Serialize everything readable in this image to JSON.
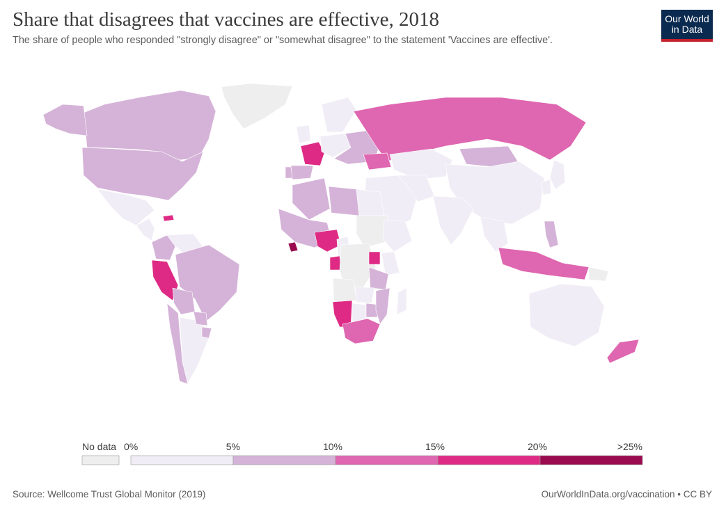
{
  "header": {
    "title": "Share that disagrees that vaccines are effective, 2018",
    "subtitle": "The share of people who responded \"strongly disagree\" or \"somewhat disagree\" to the statement 'Vaccines are effective'."
  },
  "logo": {
    "line1": "Our World",
    "line2": "in Data",
    "bg_color": "#0b2a4f",
    "accent_color": "#c5202e"
  },
  "legend": {
    "no_data_label": "No data",
    "no_data_color": "#eeeeee",
    "bins": [
      {
        "from": "0%",
        "to": "5%",
        "color": "#f1edf6"
      },
      {
        "from": "5%",
        "to": "10%",
        "color": "#d5b3d8"
      },
      {
        "from": "10%",
        "to": "15%",
        "color": "#df66b0"
      },
      {
        "from": "15%",
        "to": "20%",
        "color": "#de2a84"
      },
      {
        "from": "20%",
        "to": ">25%",
        "color": "#9a0a4e"
      }
    ],
    "tick_labels": [
      "0%",
      "5%",
      "10%",
      "15%",
      "20%",
      ">25%"
    ]
  },
  "map_data": {
    "type": "choropleth",
    "variable": "share disagreeing that vaccines are effective",
    "year": 2018,
    "regions": [
      {
        "name": "Greenland",
        "bin": "No data"
      },
      {
        "name": "Canada",
        "bin": "5-10%"
      },
      {
        "name": "Alaska",
        "bin": "5-10%"
      },
      {
        "name": "United States",
        "bin": "5-10%"
      },
      {
        "name": "Mexico",
        "bin": "0-5%"
      },
      {
        "name": "Central America",
        "bin": "0-5%"
      },
      {
        "name": "Haiti",
        "bin": "15-20%"
      },
      {
        "name": "Colombia",
        "bin": "5-10%"
      },
      {
        "name": "Venezuela",
        "bin": "0-5%"
      },
      {
        "name": "Brazil",
        "bin": "5-10%"
      },
      {
        "name": "Peru",
        "bin": "15-20%"
      },
      {
        "name": "Bolivia",
        "bin": "5-10%"
      },
      {
        "name": "Argentina",
        "bin": "0-5%"
      },
      {
        "name": "Chile",
        "bin": "5-10%"
      },
      {
        "name": "Paraguay",
        "bin": "5-10%"
      },
      {
        "name": "Uruguay",
        "bin": "5-10%"
      },
      {
        "name": "France",
        "bin": "15-20%"
      },
      {
        "name": "Spain",
        "bin": "5-10%"
      },
      {
        "name": "Portugal",
        "bin": "5-10%"
      },
      {
        "name": "United Kingdom",
        "bin": "0-5%"
      },
      {
        "name": "Scandinavia",
        "bin": "0-5%"
      },
      {
        "name": "Central Europe",
        "bin": "0-5%"
      },
      {
        "name": "Eastern Europe",
        "bin": "5-10%"
      },
      {
        "name": "Russia",
        "bin": "10-15%"
      },
      {
        "name": "Ukraine",
        "bin": "10-15%"
      },
      {
        "name": "Kazakhstan",
        "bin": "0-5%"
      },
      {
        "name": "Mongolia",
        "bin": "5-10%"
      },
      {
        "name": "China",
        "bin": "0-5%"
      },
      {
        "name": "Japan",
        "bin": "0-5%"
      },
      {
        "name": "Korea",
        "bin": "0-5%"
      },
      {
        "name": "Middle East",
        "bin": "0-5%"
      },
      {
        "name": "Iran",
        "bin": "0-5%"
      },
      {
        "name": "India",
        "bin": "0-5%"
      },
      {
        "name": "Southeast Asia",
        "bin": "0-5%"
      },
      {
        "name": "Philippines",
        "bin": "5-10%"
      },
      {
        "name": "Indonesia",
        "bin": "10-15%"
      },
      {
        "name": "Papua New Guinea",
        "bin": "No data"
      },
      {
        "name": "Australia",
        "bin": "0-5%"
      },
      {
        "name": "New Zealand",
        "bin": "10-15%"
      },
      {
        "name": "Algeria",
        "bin": "5-10%"
      },
      {
        "name": "Libya",
        "bin": "5-10%"
      },
      {
        "name": "Egypt",
        "bin": "0-5%"
      },
      {
        "name": "Sudan",
        "bin": "No data"
      },
      {
        "name": "West Africa",
        "bin": "5-10%"
      },
      {
        "name": "Liberia",
        "bin": ">25%"
      },
      {
        "name": "Nigeria",
        "bin": "15-20%"
      },
      {
        "name": "Cameroon",
        "bin": "0-5%"
      },
      {
        "name": "Gabon",
        "bin": "15-20%"
      },
      {
        "name": "Central Africa",
        "bin": "No data"
      },
      {
        "name": "Ethiopia",
        "bin": "0-5%"
      },
      {
        "name": "Kenya",
        "bin": "0-5%"
      },
      {
        "name": "Uganda",
        "bin": "15-20%"
      },
      {
        "name": "Tanzania",
        "bin": "5-10%"
      },
      {
        "name": "Angola",
        "bin": "No data"
      },
      {
        "name": "Zambia",
        "bin": "0-5%"
      },
      {
        "name": "Namibia",
        "bin": "15-20%"
      },
      {
        "name": "Botswana",
        "bin": "0-5%"
      },
      {
        "name": "Zimbabwe",
        "bin": "5-10%"
      },
      {
        "name": "Mozambique",
        "bin": "5-10%"
      },
      {
        "name": "South Africa",
        "bin": "10-15%"
      },
      {
        "name": "Madagascar",
        "bin": "0-5%"
      }
    ]
  },
  "footer": {
    "source": "Source: Wellcome Trust Global Monitor (2019)",
    "credit": "OurWorldInData.org/vaccination • CC BY"
  }
}
